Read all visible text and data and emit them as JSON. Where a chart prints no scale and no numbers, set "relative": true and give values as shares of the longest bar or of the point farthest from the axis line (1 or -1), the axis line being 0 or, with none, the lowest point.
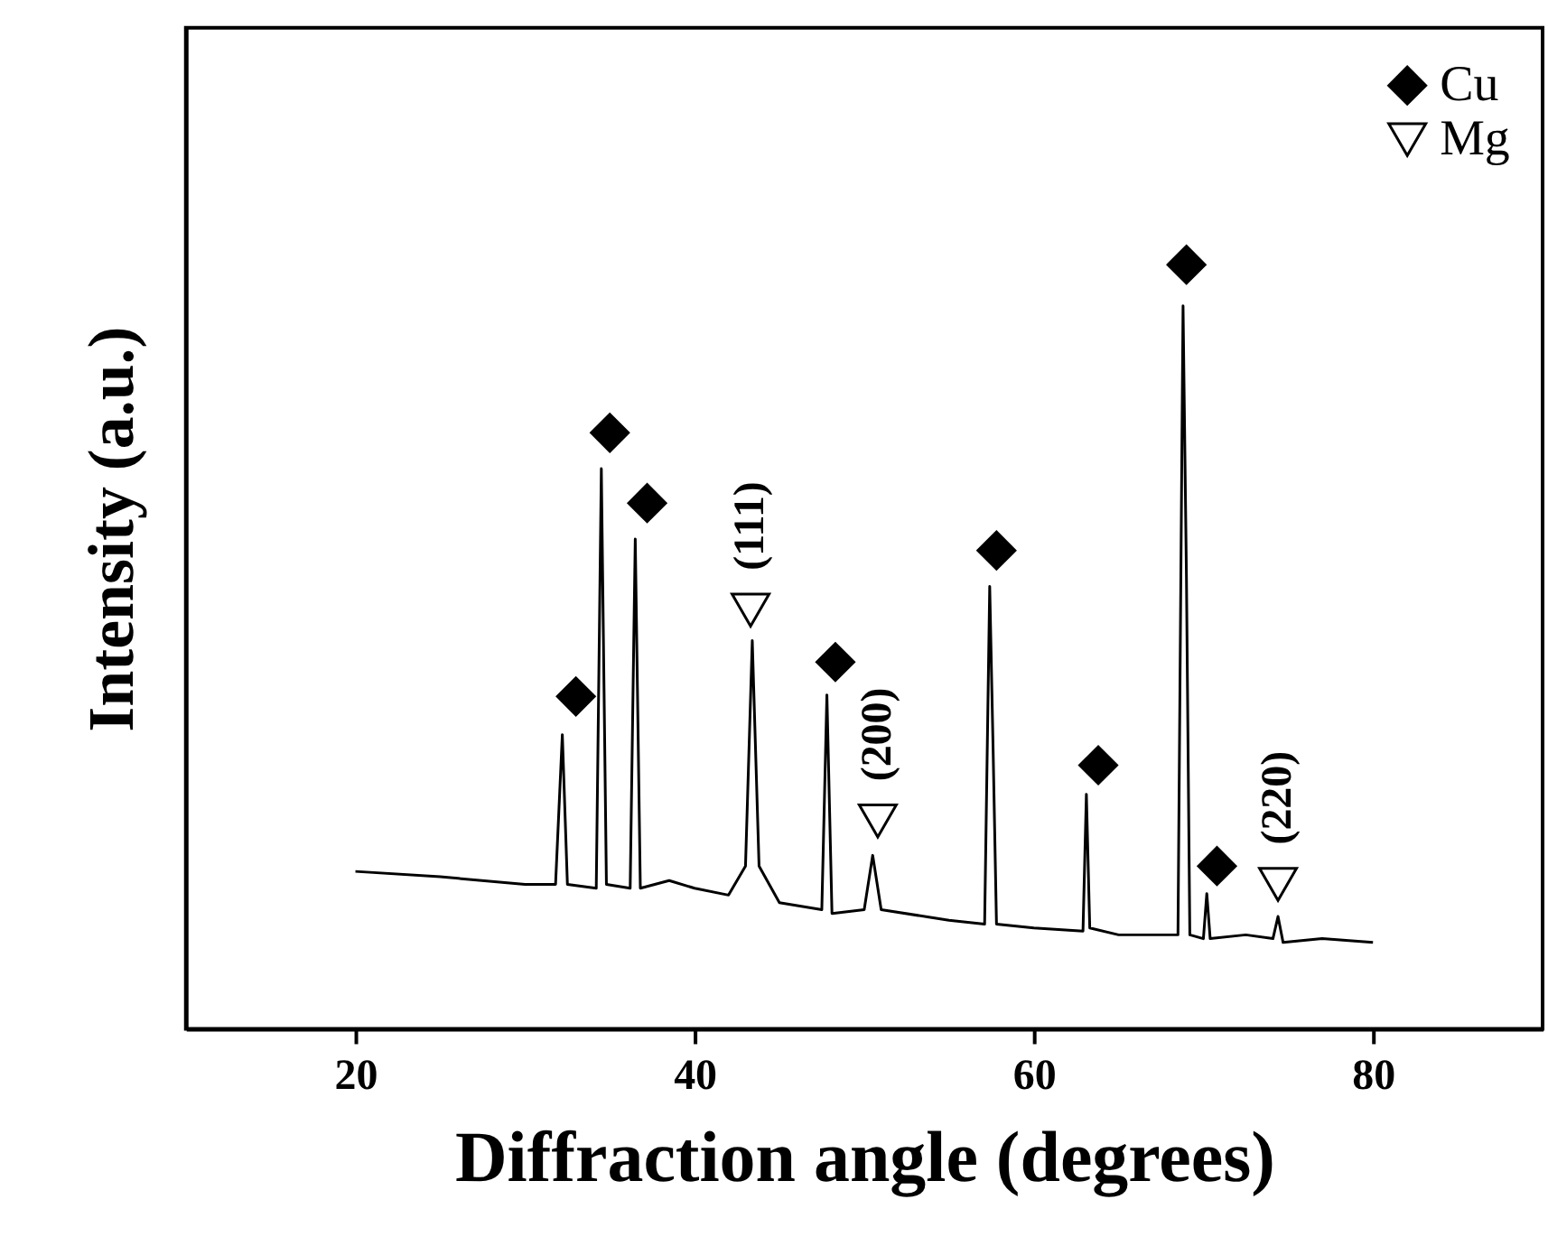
{
  "chart_data": {
    "type": "line",
    "xlabel": "Diffraction angle (degrees)",
    "ylabel": "Intensity (a.u.)",
    "relative": true,
    "xlim": [
      10,
      90
    ],
    "xticks": [
      20,
      40,
      60,
      80
    ],
    "tick_labels": "x",
    "grid": false,
    "legend": "top right",
    "series": [
      {
        "color": "#000000",
        "line_style": "solid",
        "marker": "none",
        "x": [
          20,
          25,
          30,
          31.8,
          32.2,
          32.5,
          34.2,
          34.5,
          34.8,
          36.2,
          36.5,
          36.8,
          38.5,
          40,
          42,
          43.0,
          43.4,
          43.8,
          45,
          47.5,
          47.8,
          48.1,
          50,
          50.5,
          51,
          55,
          57.1,
          57.4,
          57.6,
          57.8,
          60,
          62.9,
          63.1,
          63.3,
          65,
          68.5,
          68.8,
          69.0,
          69.2,
          70.0,
          70.2,
          70.4,
          72.5,
          74.1,
          74.4,
          74.7,
          77,
          80
        ],
        "values": [
          0.206,
          0.199,
          0.189,
          0.189,
          0.385,
          0.189,
          0.184,
          0.733,
          0.189,
          0.184,
          0.641,
          0.184,
          0.194,
          0.184,
          0.175,
          0.213,
          0.508,
          0.213,
          0.165,
          0.156,
          0.437,
          0.151,
          0.156,
          0.227,
          0.156,
          0.142,
          0.137,
          0.579,
          0.366,
          0.137,
          0.132,
          0.128,
          0.307,
          0.132,
          0.123,
          0.123,
          0.946,
          0.591,
          0.123,
          0.118,
          0.177,
          0.118,
          0.123,
          0.118,
          0.147,
          0.113,
          0.118,
          0.113
        ]
      },
      {
        "type": "scatter",
        "name": "Cu",
        "color": "#000000",
        "marker": "diamond",
        "x": [
          33,
          35,
          37.2,
          48.3,
          57.8,
          63.8,
          69,
          70.8
        ],
        "values": [
          0.435,
          0.78,
          0.688,
          0.48,
          0.626,
          0.345,
          1,
          0.213
        ]
      },
      {
        "type": "scatter",
        "name": "Mg",
        "color": "#000000",
        "marker": "triangle",
        "x": [
          43.3,
          50.8,
          74.4
        ],
        "values": [
          0.548,
          0.272,
          0.189
        ]
      }
    ],
    "annotations": [
      "(111)",
      "(200)",
      "(220)"
    ]
  }
}
